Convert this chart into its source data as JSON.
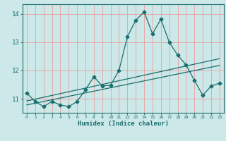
{
  "xlabel": "Humidex (Indice chaleur)",
  "bg_color": "#cce8e8",
  "line_color": "#1a6e6e",
  "grid_color": "#e8a0a0",
  "xlim": [
    -0.5,
    23.5
  ],
  "ylim": [
    10.5,
    14.35
  ],
  "yticks": [
    11,
    12,
    13,
    14
  ],
  "xticks": [
    0,
    1,
    2,
    3,
    4,
    5,
    6,
    7,
    8,
    9,
    10,
    11,
    12,
    13,
    14,
    15,
    16,
    17,
    18,
    19,
    20,
    21,
    22,
    23
  ],
  "series1_x": [
    0,
    1,
    2,
    3,
    4,
    5,
    6,
    7,
    8,
    9,
    10,
    11,
    12,
    13,
    14,
    15,
    16,
    17,
    18,
    19,
    20,
    21,
    22,
    23
  ],
  "series1_y": [
    11.2,
    10.9,
    10.72,
    10.9,
    10.78,
    10.72,
    10.9,
    11.32,
    11.78,
    11.45,
    11.48,
    12.0,
    13.2,
    13.78,
    14.08,
    13.3,
    13.82,
    13.0,
    12.55,
    12.2,
    11.65,
    11.12,
    11.45,
    11.55
  ],
  "series2_x": [
    0,
    23
  ],
  "series2_y": [
    10.78,
    12.18
  ],
  "series3_x": [
    0,
    23
  ],
  "series3_y": [
    10.92,
    12.42
  ]
}
